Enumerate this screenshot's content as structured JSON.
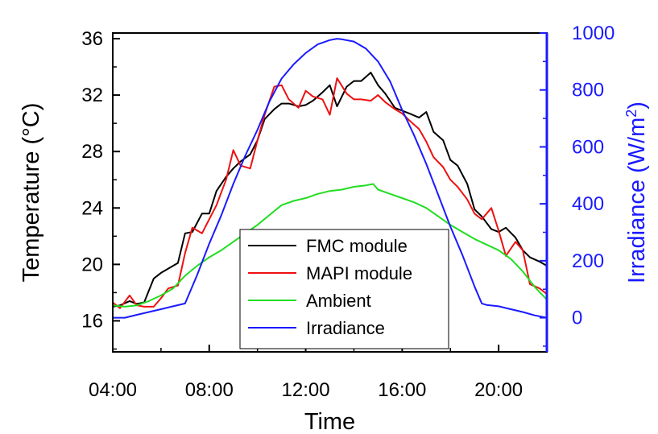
{
  "chart_data": {
    "type": "line",
    "title": "",
    "xlabel": "Time",
    "ylabel_left": "Temperature (°C)",
    "ylabel_right_prefix": "Irradiance (W/m",
    "ylabel_right_sup": "2",
    "ylabel_right_suffix": ")",
    "x_unit": "hour of day",
    "xlim": [
      4.0,
      22.0
    ],
    "ylim_left": [
      13.8,
      36.4
    ],
    "ylim_right": [
      -120,
      1000
    ],
    "x_ticks": [
      4,
      8,
      12,
      16,
      20
    ],
    "x_tick_labels": [
      "04:00",
      "08:00",
      "12:00",
      "16:00",
      "20:00"
    ],
    "y_left_ticks": [
      16,
      20,
      24,
      28,
      32,
      36
    ],
    "y_left_tick_labels": [
      "16",
      "20",
      "24",
      "28",
      "32",
      "36"
    ],
    "y_right_ticks": [
      0,
      200,
      400,
      600,
      800,
      1000
    ],
    "y_right_tick_labels": [
      "0",
      "200",
      "400",
      "600",
      "800",
      "1000"
    ],
    "grid": false,
    "legend_position": "bottom-center",
    "colors": {
      "left_axis": "#000000",
      "right_axis": "#1a1aff",
      "fmc": "#000000",
      "mapi": "#ee1111",
      "ambient": "#22dd22",
      "irradiance": "#1a1aff"
    },
    "series": [
      {
        "name": "FMC module",
        "axis": "left",
        "color": "#000000",
        "x": [
          4.0,
          4.3,
          4.7,
          5.0,
          5.3,
          5.7,
          6.0,
          6.3,
          6.7,
          7.0,
          7.3,
          7.7,
          8.0,
          8.3,
          8.7,
          9.0,
          9.3,
          9.7,
          10.0,
          10.3,
          10.7,
          11.0,
          11.3,
          11.7,
          12.0,
          12.3,
          12.7,
          13.0,
          13.3,
          13.7,
          14.0,
          14.3,
          14.7,
          15.0,
          15.3,
          15.7,
          16.0,
          16.3,
          16.7,
          17.0,
          17.3,
          17.7,
          18.0,
          18.3,
          18.7,
          19.0,
          19.3,
          19.7,
          20.0,
          20.3,
          20.7,
          21.0,
          21.3,
          21.7,
          22.0
        ],
        "values": [
          17.0,
          17.1,
          17.4,
          17.2,
          17.3,
          19.0,
          19.4,
          19.7,
          20.1,
          22.2,
          22.3,
          23.6,
          23.6,
          25.2,
          26.2,
          26.8,
          27.3,
          27.8,
          28.8,
          30.3,
          31.0,
          31.4,
          31.4,
          31.2,
          31.3,
          31.6,
          32.2,
          32.7,
          31.2,
          32.6,
          33.0,
          33.0,
          33.6,
          32.7,
          32.1,
          31.1,
          30.9,
          30.7,
          30.4,
          30.8,
          29.4,
          28.8,
          27.4,
          27.0,
          25.7,
          23.9,
          23.4,
          22.5,
          22.3,
          22.6,
          21.9,
          21.0,
          20.5,
          20.2,
          19.9
        ]
      },
      {
        "name": "MAPI module",
        "axis": "left",
        "color": "#ee1111",
        "x": [
          4.0,
          4.3,
          4.7,
          5.0,
          5.3,
          5.7,
          6.0,
          6.3,
          6.7,
          7.0,
          7.3,
          7.7,
          8.0,
          8.3,
          8.7,
          9.0,
          9.3,
          9.7,
          10.0,
          10.3,
          10.7,
          11.0,
          11.3,
          11.7,
          12.0,
          12.3,
          12.7,
          13.0,
          13.3,
          13.7,
          14.0,
          14.3,
          14.7,
          15.0,
          15.3,
          15.7,
          16.0,
          16.3,
          16.7,
          17.0,
          17.3,
          17.7,
          18.0,
          18.3,
          18.7,
          19.0,
          19.3,
          19.7,
          20.0,
          20.3,
          20.7,
          21.0,
          21.3,
          21.7,
          22.0
        ],
        "values": [
          17.3,
          16.9,
          17.8,
          17.1,
          17.0,
          17.0,
          17.6,
          18.3,
          18.5,
          20.8,
          22.6,
          22.2,
          23.2,
          24.2,
          26.0,
          28.1,
          27.0,
          26.8,
          28.8,
          30.6,
          32.6,
          32.7,
          31.7,
          31.1,
          32.3,
          31.9,
          31.7,
          30.6,
          33.2,
          32.1,
          31.7,
          31.7,
          31.6,
          32.0,
          31.5,
          31.0,
          30.7,
          30.2,
          29.6,
          28.7,
          27.6,
          26.9,
          26.0,
          25.5,
          24.6,
          23.6,
          23.2,
          24.0,
          22.4,
          20.6,
          21.6,
          21.0,
          18.6,
          18.3,
          17.9
        ]
      },
      {
        "name": "Ambient",
        "axis": "left",
        "color": "#22dd22",
        "x": [
          4.0,
          4.5,
          5.0,
          5.5,
          6.0,
          6.5,
          7.0,
          7.5,
          8.0,
          8.5,
          9.0,
          9.5,
          10.0,
          10.5,
          11.0,
          11.5,
          12.0,
          12.5,
          13.0,
          13.5,
          14.0,
          14.5,
          14.8,
          15.0,
          15.5,
          16.0,
          16.5,
          17.0,
          17.5,
          18.0,
          18.5,
          19.0,
          19.5,
          20.0,
          20.5,
          21.0,
          21.5,
          22.0
        ],
        "values": [
          17.1,
          17.0,
          17.1,
          17.4,
          17.8,
          18.3,
          19.2,
          19.9,
          20.5,
          21.0,
          21.6,
          22.2,
          22.8,
          23.5,
          24.2,
          24.5,
          24.7,
          25.0,
          25.2,
          25.3,
          25.5,
          25.6,
          25.7,
          25.3,
          25.0,
          24.7,
          24.4,
          24.0,
          23.4,
          22.8,
          22.3,
          21.8,
          21.4,
          21.0,
          20.4,
          19.5,
          18.4,
          17.5
        ]
      },
      {
        "name": "Irradiance",
        "axis": "right",
        "color": "#1a1aff",
        "x": [
          4.0,
          4.5,
          5.0,
          5.5,
          6.0,
          6.5,
          7.0,
          7.5,
          8.0,
          8.5,
          9.0,
          9.5,
          10.0,
          10.5,
          11.0,
          11.5,
          12.0,
          12.5,
          13.0,
          13.3,
          13.5,
          14.0,
          14.5,
          15.0,
          15.5,
          16.0,
          16.5,
          17.0,
          17.5,
          18.0,
          18.5,
          19.0,
          19.3,
          19.5,
          20.0,
          20.5,
          21.0,
          21.5,
          22.0
        ],
        "values": [
          0,
          0,
          10,
          20,
          30,
          40,
          50,
          150,
          260,
          360,
          470,
          570,
          660,
          760,
          840,
          890,
          930,
          960,
          975,
          980,
          978,
          970,
          945,
          900,
          830,
          730,
          640,
          540,
          430,
          320,
          220,
          110,
          50,
          45,
          40,
          30,
          20,
          8,
          0
        ]
      }
    ],
    "legend": [
      {
        "label": "FMC module",
        "color": "#000000"
      },
      {
        "label": "MAPI module",
        "color": "#ee1111"
      },
      {
        "label": "Ambient",
        "color": "#22dd22"
      },
      {
        "label": "Irradiance",
        "color": "#1a1aff"
      }
    ]
  }
}
